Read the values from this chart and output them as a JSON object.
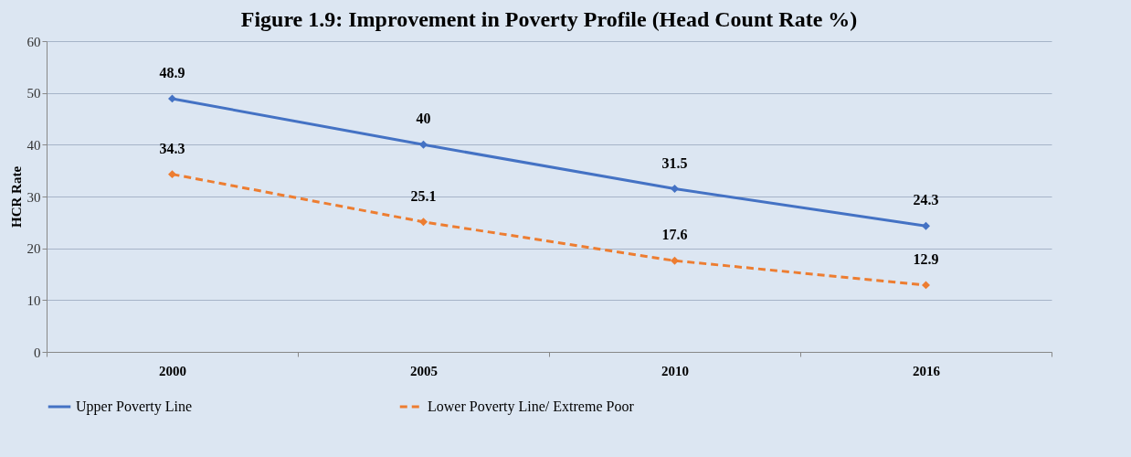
{
  "chart_data": {
    "type": "line",
    "title": "Figure 1.9: Improvement in Poverty Profile (Head Count Rate %)",
    "ylabel": "HCR Rate",
    "categories": [
      "2000",
      "2005",
      "2010",
      "2016"
    ],
    "series": [
      {
        "name": "Upper Poverty Line",
        "color": "#4472c4",
        "line_style": "solid",
        "values": [
          48.9,
          40,
          31.5,
          24.3
        ]
      },
      {
        "name": "Lower Poverty Line/ Extreme Poor",
        "color": "#ed7d31",
        "line_style": "dashed",
        "values": [
          34.3,
          25.1,
          17.6,
          12.9
        ]
      }
    ],
    "ylim": [
      0,
      60
    ],
    "yticks": [
      0,
      10,
      20,
      30,
      40,
      50,
      60
    ],
    "grid": "y",
    "legend": "bottom",
    "marker": "diamond",
    "data_labels": true
  }
}
